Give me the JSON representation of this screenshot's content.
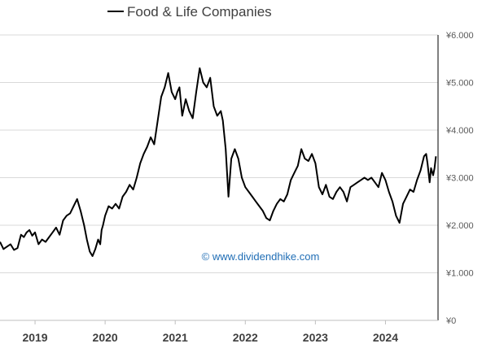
{
  "chart_data": {
    "type": "line",
    "title": "",
    "xlabel": "",
    "ylabel": "",
    "legend": {
      "position": "top-center"
    },
    "grid": {
      "horizontal": true,
      "vertical": false
    },
    "colors": {
      "line": "#000000",
      "grid": "#d9d9d9",
      "axis": "#000000",
      "watermark": "#1f6db5"
    },
    "ylim": [
      0,
      6000
    ],
    "y_ticks": [
      {
        "value": 0,
        "label": "¥0"
      },
      {
        "value": 1000,
        "label": "¥1.000"
      },
      {
        "value": 2000,
        "label": "¥2.000"
      },
      {
        "value": 3000,
        "label": "¥3.000"
      },
      {
        "value": 4000,
        "label": "¥4.000"
      },
      {
        "value": 5000,
        "label": "¥5.000"
      },
      {
        "value": 6000,
        "label": "¥6.000"
      }
    ],
    "xlim": [
      2018.5,
      2024.75
    ],
    "x_ticks": [
      {
        "value": 2019,
        "label": "2019"
      },
      {
        "value": 2020,
        "label": "2020"
      },
      {
        "value": 2021,
        "label": "2021"
      },
      {
        "value": 2022,
        "label": "2022"
      },
      {
        "value": 2023,
        "label": "2023"
      },
      {
        "value": 2024,
        "label": "2024"
      }
    ],
    "annotation": "© www.dividendhike.com",
    "series": [
      {
        "name": "Food & Life Companies",
        "x": [
          2018.5,
          2018.55,
          2018.6,
          2018.65,
          2018.7,
          2018.75,
          2018.8,
          2018.84,
          2018.88,
          2018.92,
          2018.96,
          2019.0,
          2019.05,
          2019.1,
          2019.15,
          2019.2,
          2019.25,
          2019.3,
          2019.35,
          2019.4,
          2019.45,
          2019.5,
          2019.55,
          2019.6,
          2019.65,
          2019.7,
          2019.74,
          2019.78,
          2019.82,
          2019.86,
          2019.9,
          2019.93,
          2019.95,
          2019.97,
          2020.0,
          2020.05,
          2020.1,
          2020.15,
          2020.2,
          2020.25,
          2020.3,
          2020.35,
          2020.4,
          2020.45,
          2020.5,
          2020.55,
          2020.6,
          2020.65,
          2020.7,
          2020.75,
          2020.8,
          2020.85,
          2020.9,
          2020.95,
          2021.0,
          2021.03,
          2021.06,
          2021.1,
          2021.15,
          2021.2,
          2021.25,
          2021.3,
          2021.35,
          2021.4,
          2021.45,
          2021.5,
          2021.55,
          2021.6,
          2021.65,
          2021.68,
          2021.72,
          2021.76,
          2021.8,
          2021.85,
          2021.9,
          2021.95,
          2022.0,
          2022.05,
          2022.1,
          2022.15,
          2022.2,
          2022.25,
          2022.3,
          2022.35,
          2022.4,
          2022.45,
          2022.5,
          2022.55,
          2022.6,
          2022.65,
          2022.7,
          2022.75,
          2022.8,
          2022.85,
          2022.9,
          2022.95,
          2023.0,
          2023.05,
          2023.1,
          2023.15,
          2023.2,
          2023.25,
          2023.3,
          2023.35,
          2023.4,
          2023.45,
          2023.5,
          2023.55,
          2023.6,
          2023.65,
          2023.7,
          2023.75,
          2023.8,
          2023.85,
          2023.9,
          2023.95,
          2024.0,
          2024.05,
          2024.1,
          2024.15,
          2024.2,
          2024.25,
          2024.3,
          2024.35,
          2024.4,
          2024.45,
          2024.5,
          2024.55,
          2024.58,
          2024.6,
          2024.63,
          2024.65,
          2024.68,
          2024.7,
          2024.72
        ],
        "values": [
          1650,
          1500,
          1550,
          1600,
          1480,
          1520,
          1800,
          1750,
          1850,
          1900,
          1780,
          1850,
          1600,
          1700,
          1650,
          1750,
          1850,
          1950,
          1800,
          2100,
          2200,
          2250,
          2400,
          2550,
          2300,
          2000,
          1700,
          1450,
          1350,
          1500,
          1700,
          1600,
          1900,
          2000,
          2200,
          2400,
          2350,
          2450,
          2350,
          2600,
          2700,
          2850,
          2750,
          3000,
          3300,
          3500,
          3650,
          3850,
          3700,
          4200,
          4700,
          4900,
          5200,
          4800,
          4650,
          4800,
          4900,
          4300,
          4650,
          4400,
          4250,
          4800,
          5300,
          5000,
          4900,
          5100,
          4500,
          4300,
          4400,
          4200,
          3600,
          2600,
          3400,
          3600,
          3400,
          3000,
          2800,
          2700,
          2600,
          2500,
          2400,
          2300,
          2150,
          2100,
          2300,
          2450,
          2550,
          2500,
          2650,
          2950,
          3100,
          3250,
          3600,
          3400,
          3350,
          3500,
          3300,
          2800,
          2650,
          2850,
          2600,
          2550,
          2700,
          2800,
          2700,
          2500,
          2800,
          2850,
          2900,
          2950,
          3000,
          2950,
          3000,
          2900,
          2800,
          3100,
          2950,
          2700,
          2500,
          2200,
          2050,
          2450,
          2600,
          2750,
          2700,
          2950,
          3150,
          3450,
          3500,
          3300,
          2900,
          3200,
          3050,
          3200,
          3450
        ]
      }
    ]
  }
}
